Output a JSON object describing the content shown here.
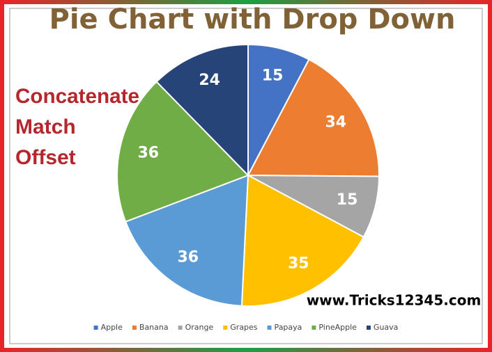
{
  "chart_data": {
    "type": "pie",
    "title": "Pie Chart with Drop Down",
    "annotations": [
      "Concatenate",
      "Match",
      "Offset"
    ],
    "website": "www.Tricks12345.com",
    "categories": [
      "Apple",
      "Banana",
      "Orange",
      "Grapes",
      "Papaya",
      "PineApple",
      "Guava"
    ],
    "values": [
      15,
      34,
      15,
      35,
      36,
      36,
      24
    ],
    "colors": [
      "#4472c4",
      "#ed7d31",
      "#a5a5a5",
      "#ffc000",
      "#5b9bd5",
      "#70ad47",
      "#264478"
    ],
    "legend": "bottom"
  }
}
